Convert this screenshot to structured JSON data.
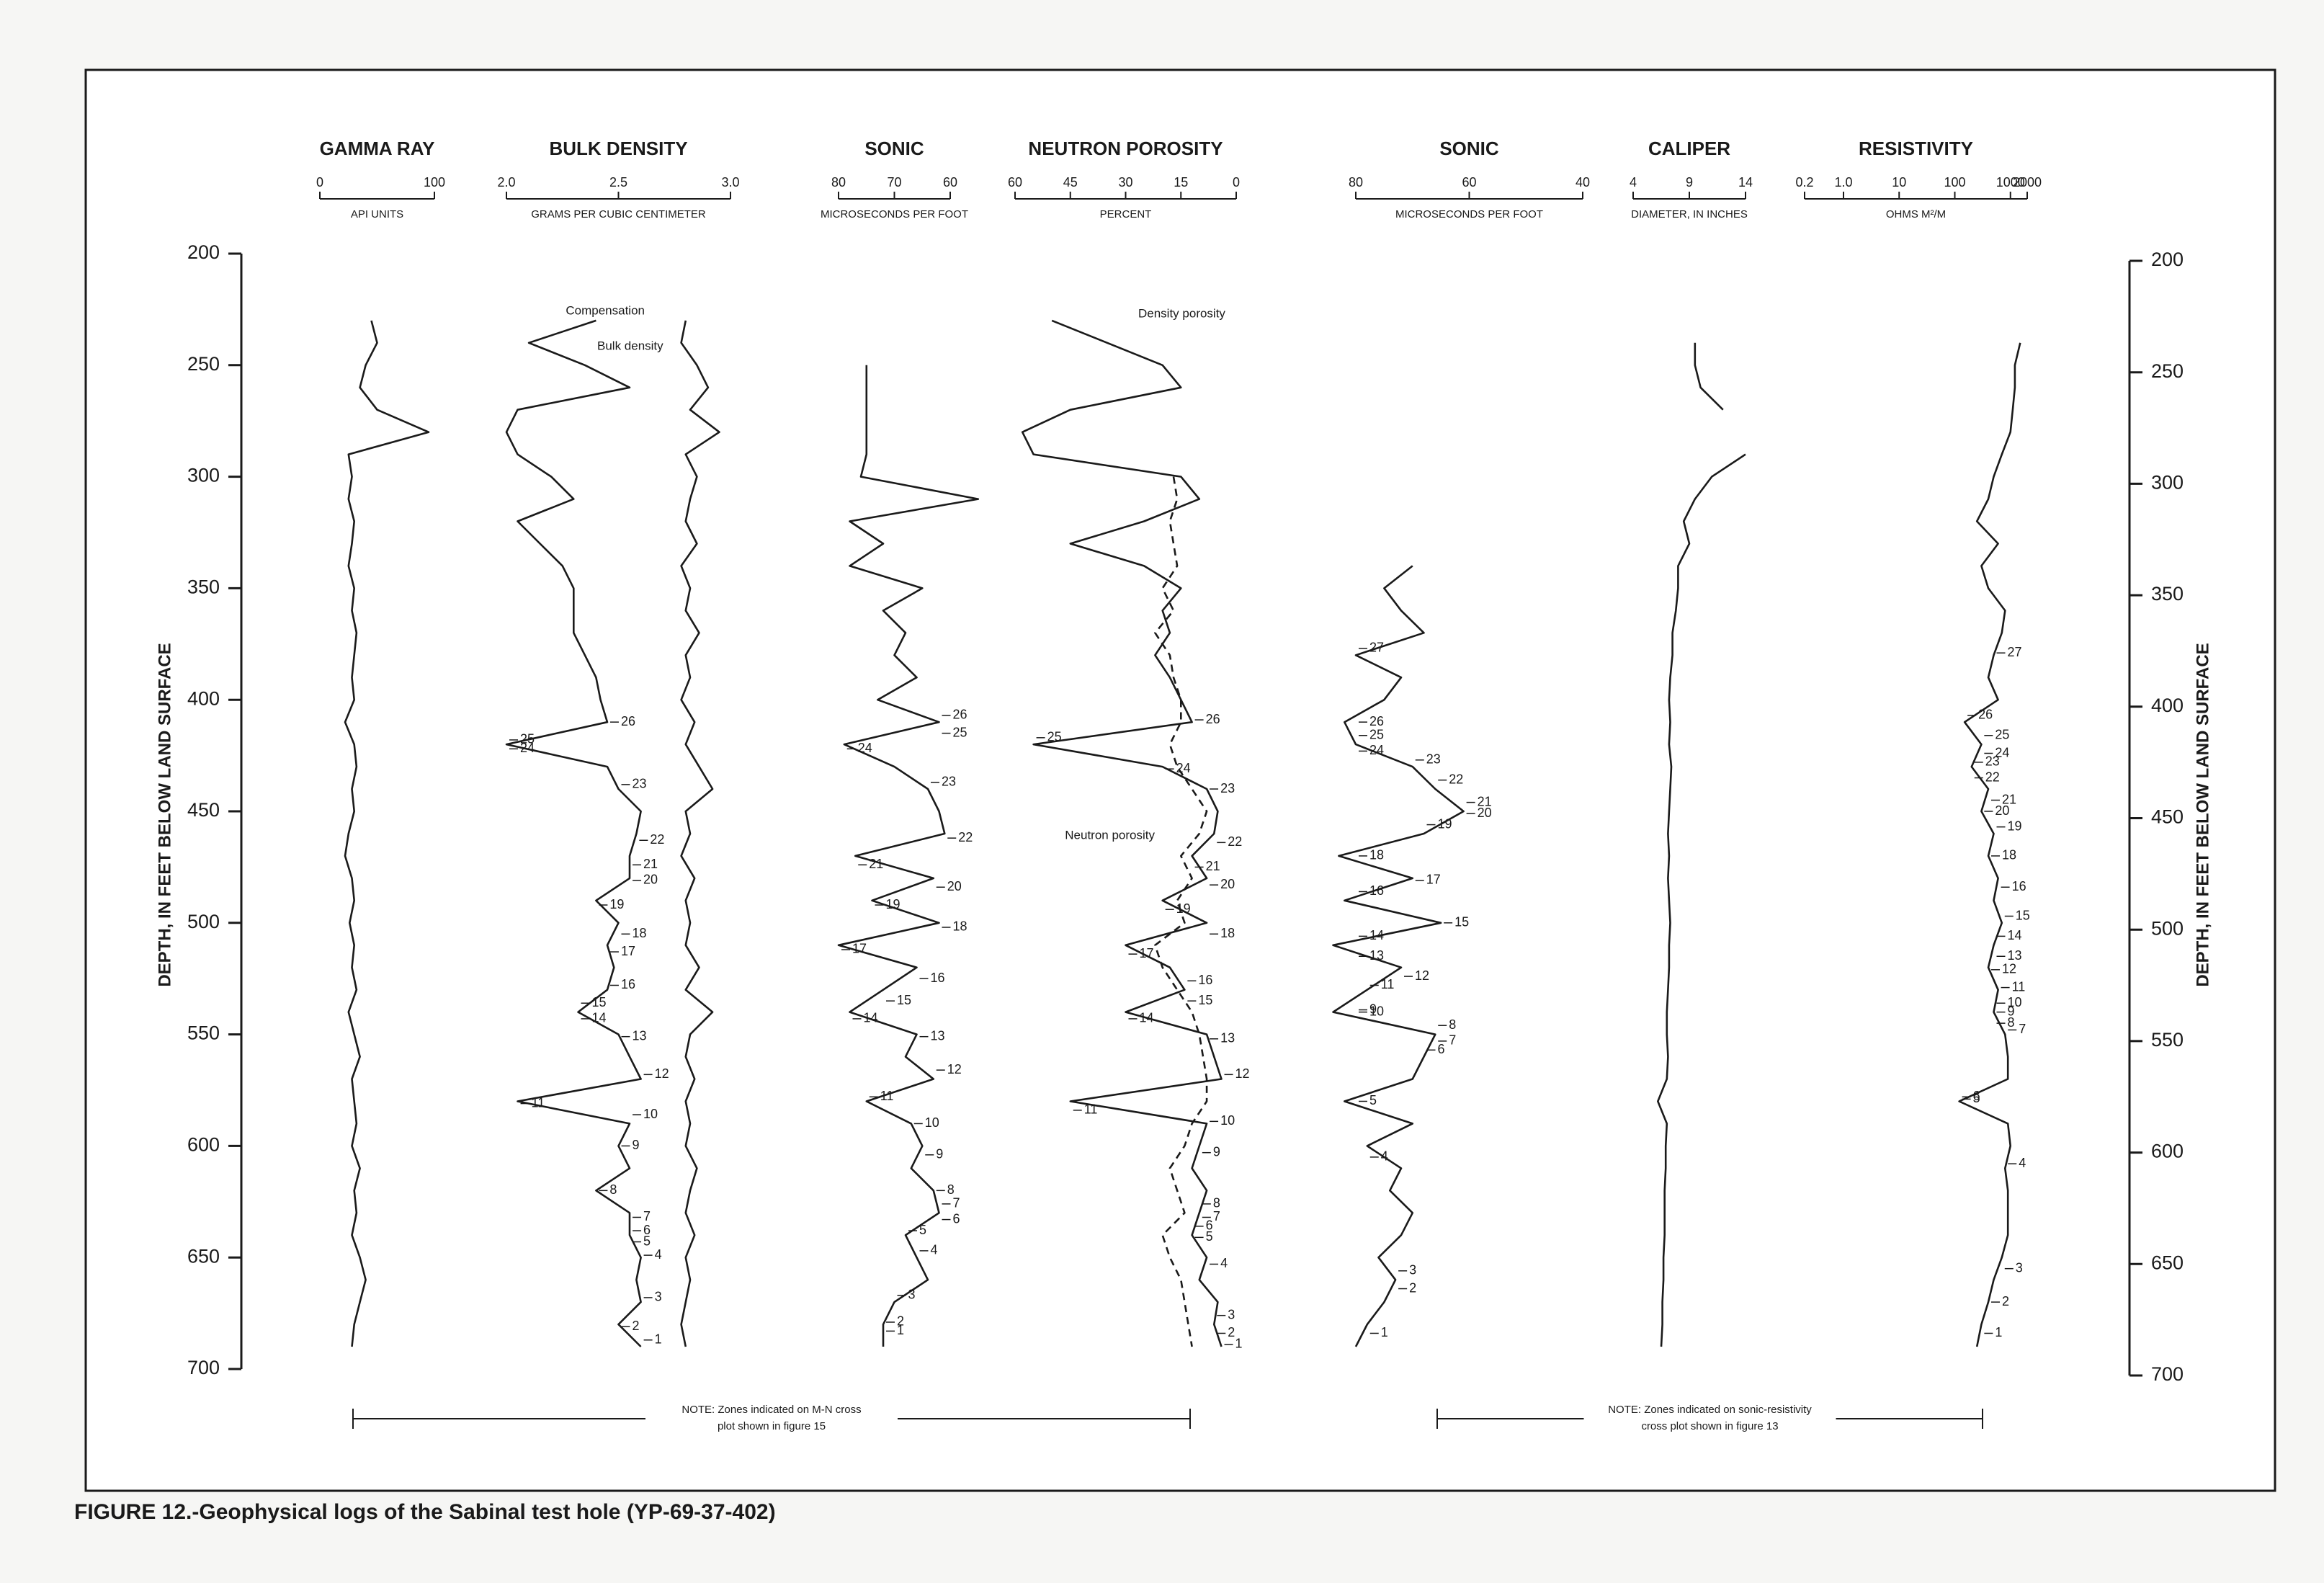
{
  "chart_data": {
    "type": "well-log",
    "caption": "FIGURE 12.-Geophysical logs of the Sabinal test hole (YP-69-37-402)",
    "depth_label": "DEPTH, IN FEET BELOW LAND SURFACE",
    "ylim": [
      200,
      700
    ],
    "yticks": [
      200,
      250,
      300,
      350,
      400,
      450,
      500,
      550,
      600,
      650,
      700
    ],
    "depths": [
      220,
      230,
      240,
      250,
      260,
      270,
      280,
      290,
      300,
      310,
      320,
      330,
      340,
      350,
      360,
      370,
      380,
      390,
      400,
      410,
      420,
      430,
      440,
      450,
      460,
      470,
      480,
      490,
      500,
      510,
      520,
      530,
      540,
      550,
      560,
      570,
      580,
      590,
      600,
      610,
      620,
      630,
      640,
      650,
      660,
      670,
      680,
      690,
      700
    ],
    "notes": [
      [
        "NOTE: Zones indicated on M-N cross",
        "plot shown in figure 15"
      ],
      [
        "NOTE: Zones indicated on sonic-resistivity",
        "cross plot shown in figure 13"
      ]
    ],
    "tracks": [
      {
        "title": "GAMMA RAY",
        "unit": "API UNITS",
        "scale": "linear",
        "xlim": [
          0,
          100
        ],
        "xticks": [
          0,
          100
        ],
        "series": [
          {
            "color": "#1a1a1a",
            "dash": false,
            "values": [
              null,
              45,
              50,
              40,
              35,
              50,
              95,
              25,
              28,
              25,
              30,
              28,
              25,
              30,
              28,
              32,
              30,
              28,
              30,
              22,
              30,
              32,
              28,
              30,
              25,
              22,
              28,
              30,
              26,
              30,
              28,
              32,
              25,
              30,
              35,
              28,
              30,
              32,
              28,
              35,
              30,
              32,
              28,
              35,
              40,
              35,
              30,
              28,
              null
            ]
          }
        ]
      },
      {
        "title": "BULK DENSITY",
        "unit": "GRAMS PER CUBIC CENTIMETER",
        "scale": "linear",
        "xlim": [
          2,
          3
        ],
        "xticks": [
          {
            "value": 2,
            "label": "2.0"
          },
          2.5,
          {
            "value": 3,
            "label": "3.0"
          }
        ],
        "series": [
          {
            "name": "Bulk density",
            "color": "#1a1a1a",
            "dash": false,
            "values": [
              null,
              2.4,
              2.1,
              2.35,
              2.55,
              2.05,
              2.0,
              2.05,
              2.2,
              2.3,
              2.05,
              2.15,
              2.25,
              2.3,
              2.3,
              2.3,
              2.35,
              2.4,
              2.42,
              2.45,
              2.0,
              2.45,
              2.5,
              2.6,
              2.58,
              2.55,
              2.55,
              2.4,
              2.5,
              2.45,
              2.48,
              2.45,
              2.32,
              2.5,
              2.55,
              2.6,
              2.05,
              2.55,
              2.5,
              2.55,
              2.4,
              2.55,
              2.55,
              2.6,
              2.58,
              2.6,
              2.5,
              2.6,
              null
            ]
          },
          {
            "name": "Compensation",
            "color": "#1a1a1a",
            "dash": false,
            "values": [
              null,
              2.8,
              2.78,
              2.85,
              2.9,
              2.82,
              2.95,
              2.8,
              2.85,
              2.82,
              2.8,
              2.85,
              2.78,
              2.82,
              2.8,
              2.86,
              2.8,
              2.82,
              2.78,
              2.84,
              2.8,
              2.86,
              2.92,
              2.8,
              2.82,
              2.78,
              2.84,
              2.8,
              2.82,
              2.8,
              2.86,
              2.8,
              2.92,
              2.82,
              2.8,
              2.84,
              2.8,
              2.82,
              2.8,
              2.85,
              2.82,
              2.8,
              2.84,
              2.8,
              2.82,
              2.8,
              2.78,
              2.8,
              null
            ]
          }
        ],
        "zones": {
          "labels": [
            26,
            25,
            24,
            23,
            22,
            21,
            20,
            19,
            18,
            17,
            16,
            15,
            14,
            13,
            12,
            11,
            10,
            9,
            8,
            7,
            6,
            5,
            4,
            3,
            2,
            1
          ],
          "depths": [
            410,
            418,
            422,
            438,
            463,
            474,
            481,
            492,
            505,
            513,
            528,
            536,
            543,
            551,
            568,
            581,
            586,
            600,
            620,
            632,
            638,
            643,
            649,
            668,
            681,
            687
          ]
        }
      },
      {
        "title": "SONIC",
        "unit": "MICROSECONDS PER FOOT",
        "scale": "linear",
        "xlim": [
          80,
          60
        ],
        "xticks": [
          80,
          70,
          60
        ],
        "series": [
          {
            "color": "#1a1a1a",
            "dash": false,
            "values": [
              null,
              null,
              null,
              75,
              75,
              75,
              75,
              75,
              76,
              55,
              78,
              72,
              78,
              65,
              72,
              68,
              70,
              66,
              73,
              62,
              79,
              70,
              64,
              62,
              61,
              77,
              63,
              74,
              62,
              80,
              66,
              72,
              78,
              66,
              68,
              63,
              75,
              67,
              65,
              67,
              63,
              62,
              68,
              66,
              64,
              70,
              72,
              72,
              null
            ]
          }
        ],
        "zones": {
          "labels": [
            26,
            25,
            24,
            23,
            22,
            21,
            20,
            19,
            18,
            17,
            16,
            15,
            14,
            13,
            12,
            11,
            10,
            9,
            8,
            7,
            6,
            5,
            4,
            3,
            2,
            1
          ],
          "depths": [
            407,
            415,
            422,
            437,
            462,
            474,
            484,
            492,
            502,
            512,
            525,
            535,
            543,
            551,
            566,
            578,
            590,
            604,
            620,
            626,
            633,
            638,
            647,
            667,
            679,
            683
          ]
        }
      },
      {
        "title": "NEUTRON POROSITY",
        "unit": "PERCENT",
        "scale": "linear",
        "xlim": [
          60,
          0
        ],
        "xticks": [
          60,
          45,
          30,
          15,
          0
        ],
        "series": [
          {
            "name": "Density porosity",
            "color": "#1a1a1a",
            "dash": false,
            "values": [
              null,
              50,
              35,
              20,
              15,
              45,
              58,
              55,
              15,
              10,
              25,
              45,
              25,
              15,
              20,
              18,
              22,
              18,
              15,
              12,
              55,
              20,
              8,
              5,
              6,
              12,
              8,
              20,
              8,
              30,
              18,
              14,
              30,
              8,
              6,
              4,
              45,
              8,
              10,
              12,
              8,
              10,
              12,
              8,
              10,
              5,
              6,
              4,
              null
            ]
          },
          {
            "name": "Neutron porosity",
            "color": "#1a1a1a",
            "dash": true,
            "values": [
              null,
              null,
              null,
              null,
              null,
              null,
              null,
              null,
              17,
              16,
              18,
              17,
              16,
              20,
              17,
              22,
              18,
              17,
              15,
              15,
              18,
              16,
              12,
              8,
              10,
              15,
              12,
              16,
              14,
              22,
              20,
              16,
              12,
              10,
              9,
              8,
              8,
              12,
              14,
              18,
              16,
              14,
              20,
              18,
              15,
              14,
              13,
              12,
              null
            ]
          }
        ],
        "zones": {
          "labels": [
            26,
            25,
            24,
            23,
            22,
            21,
            20,
            19,
            18,
            17,
            16,
            15,
            14,
            13,
            12,
            11,
            10,
            9,
            8,
            7,
            6,
            5,
            4,
            3,
            2,
            1
          ],
          "depths": [
            409,
            417,
            431,
            440,
            464,
            475,
            483,
            494,
            505,
            514,
            526,
            535,
            543,
            552,
            568,
            584,
            589,
            603,
            626,
            632,
            636,
            641,
            653,
            676,
            684,
            689
          ]
        }
      },
      {
        "title": "SONIC",
        "unit": "MICROSECONDS PER FOOT",
        "scale": "linear",
        "xlim": [
          80,
          40
        ],
        "xticks": [
          80,
          60,
          40
        ],
        "series": [
          {
            "color": "#1a1a1a",
            "dash": false,
            "values": [
              null,
              null,
              null,
              null,
              null,
              null,
              null,
              null,
              null,
              null,
              null,
              null,
              70,
              75,
              72,
              68,
              80,
              72,
              75,
              82,
              80,
              70,
              66,
              61,
              68,
              83,
              70,
              82,
              65,
              84,
              72,
              78,
              84,
              66,
              68,
              70,
              82,
              70,
              78,
              72,
              74,
              70,
              72,
              76,
              73,
              75,
              78,
              80,
              null
            ]
          }
        ],
        "zones": {
          "labels": [
            27,
            26,
            25,
            24,
            23,
            22,
            21,
            20,
            19,
            18,
            17,
            16,
            15,
            14,
            13,
            12,
            11,
            10,
            9,
            8,
            7,
            6,
            5,
            4,
            3,
            2,
            1
          ],
          "depths": [
            377,
            410,
            416,
            423,
            427,
            436,
            446,
            451,
            456,
            470,
            481,
            486,
            500,
            506,
            515,
            524,
            528,
            540,
            539,
            546,
            553,
            557,
            580,
            605,
            656,
            664,
            684
          ]
        }
      },
      {
        "title": "CALIPER",
        "unit": "DIAMETER, IN INCHES",
        "scale": "linear",
        "xlim": [
          4,
          14
        ],
        "xticks": [
          4,
          9,
          14
        ],
        "series": [
          {
            "color": "#1a1a1a",
            "dash": false,
            "values": [
              null,
              null,
              9.5,
              9.5,
              10,
              12,
              null,
              14,
              11,
              9.5,
              8.5,
              9,
              8,
              8,
              7.8,
              7.5,
              7.5,
              7.3,
              7.2,
              7.3,
              7.2,
              7.4,
              7.3,
              7.2,
              7.1,
              7.2,
              7.1,
              7.2,
              7.3,
              7.2,
              7.2,
              7.1,
              7.0,
              7.0,
              7.1,
              7.0,
              6.2,
              7.0,
              6.9,
              6.9,
              6.8,
              6.8,
              6.8,
              6.7,
              6.7,
              6.6,
              6.6,
              6.5,
              null
            ]
          }
        ]
      },
      {
        "title": "RESISTIVITY",
        "unit": "OHMS M²/M",
        "scale": "log",
        "xlim": [
          0.2,
          2000
        ],
        "xticks": [
          0.2,
          {
            "value": 1,
            "label": "1.0"
          },
          10,
          100,
          1000,
          2000
        ],
        "series": [
          {
            "color": "#1a1a1a",
            "dash": false,
            "values": [
              null,
              null,
              1500,
              1200,
              1200,
              1100,
              1000,
              700,
              500,
              400,
              250,
              600,
              300,
              400,
              800,
              700,
              500,
              400,
              600,
              150,
              300,
              200,
              400,
              300,
              500,
              400,
              600,
              500,
              700,
              500,
              400,
              600,
              500,
              800,
              900,
              900,
              120,
              900,
              1000,
              800,
              900,
              900,
              900,
              700,
              500,
              400,
              300,
              250,
              null
            ]
          }
        ],
        "zones": {
          "labels": [
            27,
            26,
            25,
            24,
            23,
            22,
            21,
            20,
            19,
            18,
            16,
            15,
            14,
            13,
            12,
            11,
            10,
            9,
            8,
            7,
            6,
            5,
            4,
            3,
            2,
            1
          ],
          "depths": [
            379,
            407,
            416,
            424,
            428,
            435,
            445,
            450,
            457,
            470,
            484,
            497,
            506,
            515,
            521,
            529,
            536,
            540,
            545,
            548,
            578,
            579,
            608,
            655,
            670,
            684
          ]
        }
      }
    ]
  }
}
